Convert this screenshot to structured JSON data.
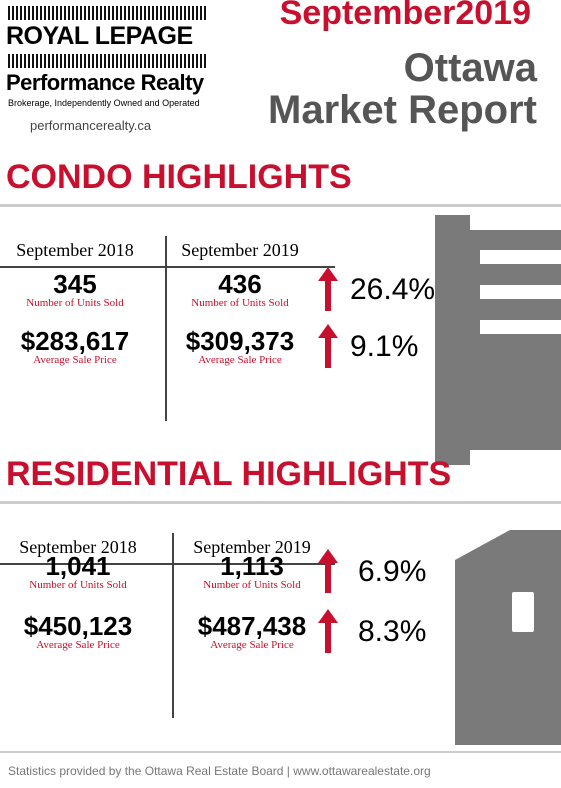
{
  "logo": {
    "brand": "ROYAL LEPAGE",
    "name": "Performance Realty",
    "tagline": "Brokerage, Independently Owned and Operated",
    "website": "performancerealty.ca"
  },
  "header": {
    "date": "September2019",
    "title_line1": "Ottawa",
    "title_line2": "Market Report"
  },
  "sections": [
    {
      "title": "CONDO HIGHLIGHTS",
      "columns": [
        "September 2018",
        "September 2019"
      ],
      "rows": [
        {
          "prev": "345",
          "curr": "436",
          "label": "Number of Units Sold",
          "change": "26.4%"
        },
        {
          "prev": "$283,617",
          "curr": "$309,373",
          "label": "Average Sale Price",
          "change": "9.1%"
        }
      ]
    },
    {
      "title": "RESIDENTIAL HIGHLIGHTS",
      "columns": [
        "September 2018",
        "September 2019"
      ],
      "rows": [
        {
          "prev": "1,041",
          "curr": "1,113",
          "label": "Number of Units Sold",
          "change": "6.9%"
        },
        {
          "prev": "$450,123",
          "curr": "$487,438",
          "label": "Average Sale Price",
          "change": "8.3%"
        }
      ]
    }
  ],
  "footer": "Statistics provided by the Ottawa Real Estate Board | www.ottawarealestate.org"
}
